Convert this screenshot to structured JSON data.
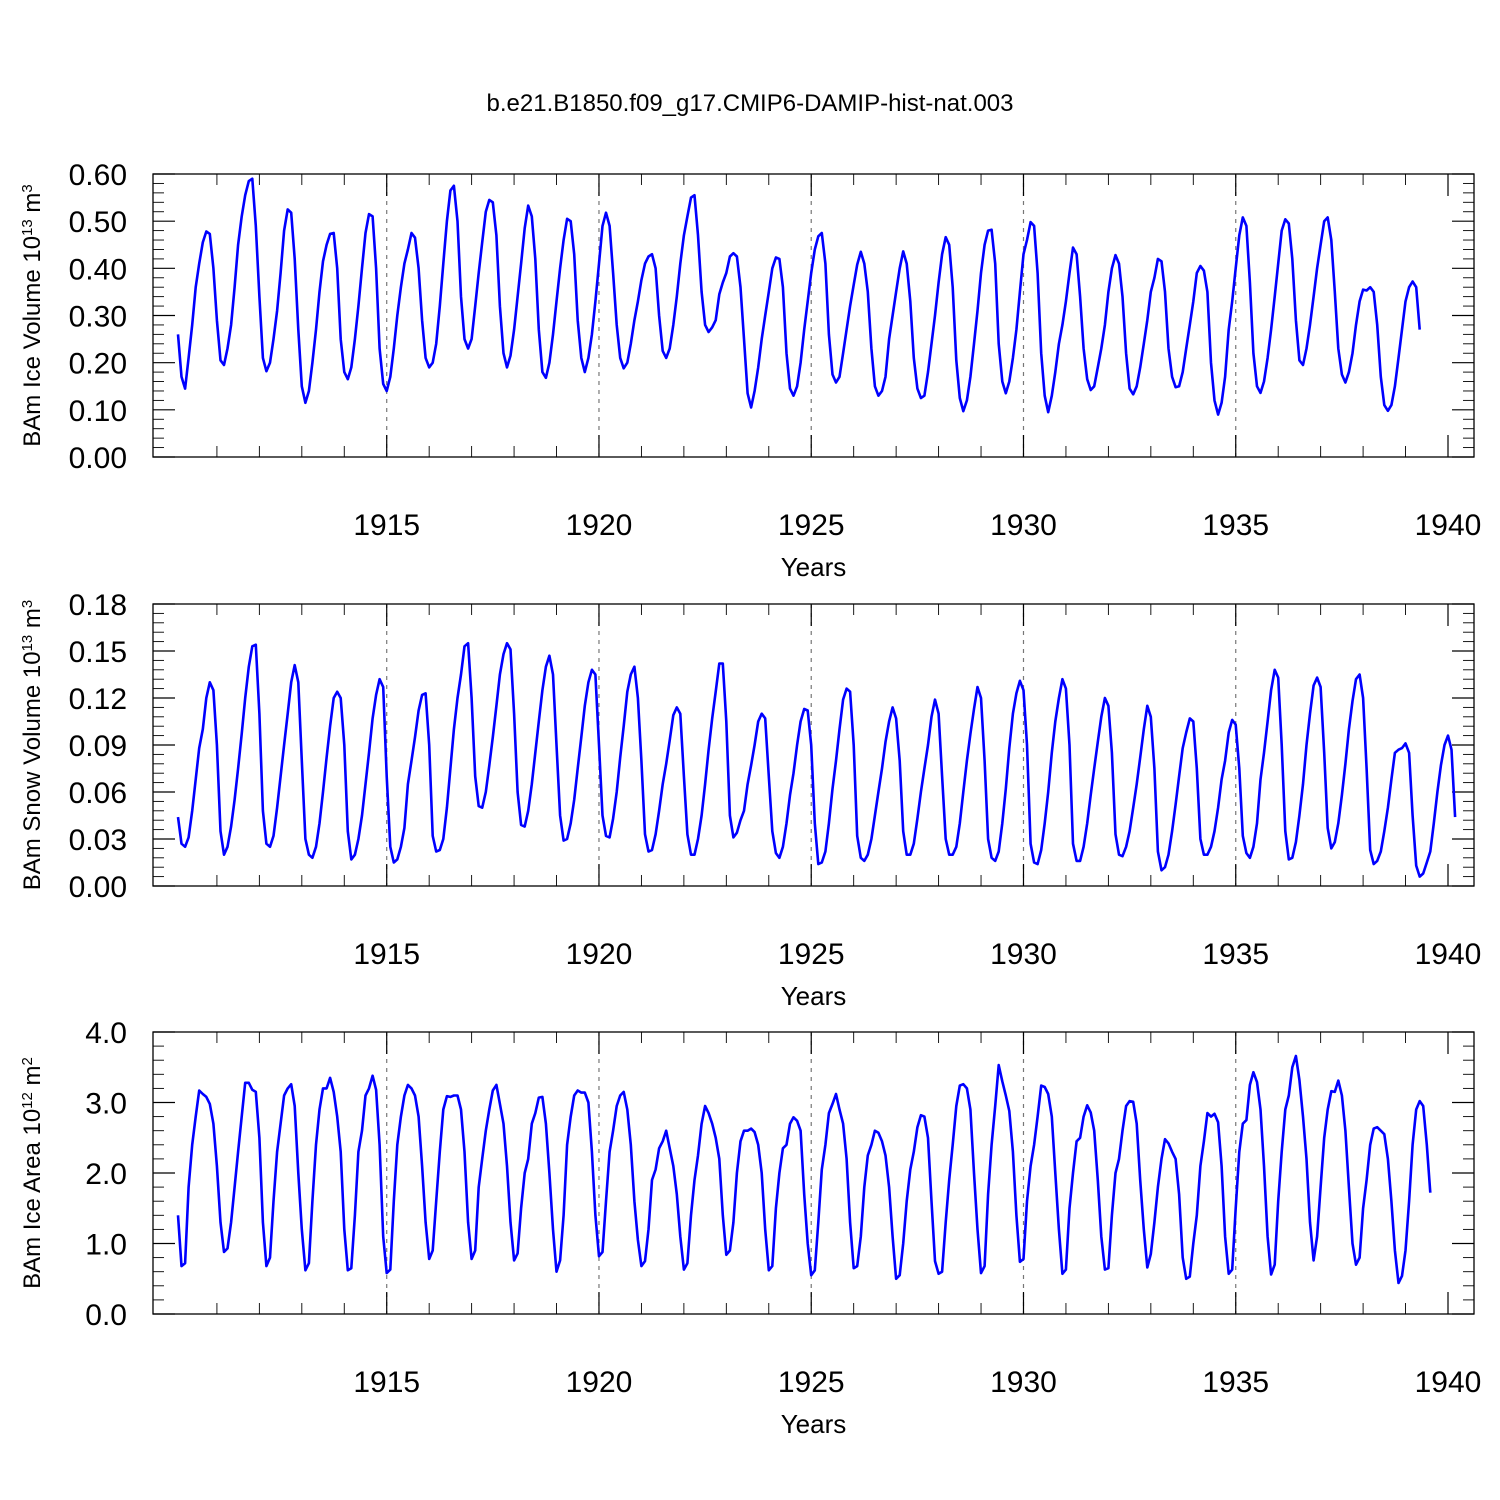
{
  "title": "b.e21.B1850.f09_g17.CMIP6-DAMIP-hist-nat.003",
  "chart_data": [
    {
      "type": "line",
      "name": "ice-volume",
      "ylabel": {
        "main": "BAm Ice Volume 10",
        "sup": "13",
        "mid": " m",
        "unit_sup": "3"
      },
      "xlabel": "Years",
      "xlim": [
        1910.0833,
        1940.0
      ],
      "ylim": [
        0,
        0.6
      ],
      "yticks": [
        "0.00",
        "0.10",
        "0.20",
        "0.30",
        "0.40",
        "0.50",
        "0.60"
      ],
      "yticks_values": [
        0,
        0.1,
        0.2,
        0.3,
        0.4,
        0.5,
        0.6
      ],
      "xticks": [
        "1915",
        "1920",
        "1925",
        "1930",
        "1935",
        "1940"
      ],
      "xticks_values": [
        1915,
        1920,
        1925,
        1930,
        1935,
        1940
      ],
      "grid_x": [
        1915,
        1920,
        1925,
        1930,
        1935
      ],
      "color": "#0000ff",
      "x_start": 1910.0833,
      "x_step": 0.0833333,
      "values": [
        0.26,
        0.17,
        0.145,
        0.21,
        0.28,
        0.36,
        0.41,
        0.455,
        0.478,
        0.473,
        0.4,
        0.29,
        0.205,
        0.195,
        0.23,
        0.28,
        0.36,
        0.45,
        0.51,
        0.555,
        0.585,
        0.59,
        0.49,
        0.34,
        0.21,
        0.182,
        0.2,
        0.25,
        0.31,
        0.39,
        0.48,
        0.525,
        0.518,
        0.42,
        0.27,
        0.15,
        0.115,
        0.14,
        0.2,
        0.27,
        0.35,
        0.415,
        0.45,
        0.473,
        0.475,
        0.4,
        0.25,
        0.18,
        0.165,
        0.19,
        0.25,
        0.32,
        0.4,
        0.475,
        0.515,
        0.51,
        0.4,
        0.23,
        0.155,
        0.14,
        0.17,
        0.23,
        0.3,
        0.36,
        0.41,
        0.44,
        0.475,
        0.465,
        0.4,
        0.29,
        0.21,
        0.19,
        0.2,
        0.24,
        0.32,
        0.41,
        0.5,
        0.565,
        0.575,
        0.5,
        0.34,
        0.25,
        0.23,
        0.25,
        0.32,
        0.39,
        0.455,
        0.52,
        0.545,
        0.54,
        0.47,
        0.32,
        0.22,
        0.19,
        0.215,
        0.27,
        0.34,
        0.41,
        0.485,
        0.533,
        0.51,
        0.42,
        0.27,
        0.18,
        0.168,
        0.2,
        0.26,
        0.33,
        0.4,
        0.46,
        0.505,
        0.5,
        0.43,
        0.29,
        0.21,
        0.18,
        0.21,
        0.26,
        0.33,
        0.41,
        0.49,
        0.518,
        0.49,
        0.39,
        0.28,
        0.21,
        0.188,
        0.2,
        0.24,
        0.29,
        0.33,
        0.375,
        0.41,
        0.425,
        0.43,
        0.4,
        0.3,
        0.225,
        0.21,
        0.23,
        0.28,
        0.34,
        0.41,
        0.47,
        0.51,
        0.55,
        0.555,
        0.47,
        0.35,
        0.28,
        0.265,
        0.275,
        0.29,
        0.345,
        0.37,
        0.39,
        0.425,
        0.432,
        0.425,
        0.36,
        0.25,
        0.135,
        0.105,
        0.14,
        0.19,
        0.25,
        0.3,
        0.35,
        0.4,
        0.423,
        0.42,
        0.36,
        0.22,
        0.145,
        0.13,
        0.15,
        0.2,
        0.27,
        0.33,
        0.39,
        0.44,
        0.468,
        0.475,
        0.41,
        0.26,
        0.175,
        0.158,
        0.17,
        0.22,
        0.27,
        0.32,
        0.365,
        0.408,
        0.435,
        0.41,
        0.35,
        0.23,
        0.15,
        0.13,
        0.14,
        0.17,
        0.25,
        0.3,
        0.35,
        0.4,
        0.436,
        0.41,
        0.33,
        0.21,
        0.145,
        0.125,
        0.13,
        0.18,
        0.24,
        0.3,
        0.37,
        0.43,
        0.466,
        0.45,
        0.36,
        0.205,
        0.125,
        0.097,
        0.12,
        0.17,
        0.24,
        0.31,
        0.39,
        0.45,
        0.48,
        0.482,
        0.41,
        0.24,
        0.16,
        0.135,
        0.16,
        0.21,
        0.27,
        0.35,
        0.43,
        0.46,
        0.498,
        0.49,
        0.39,
        0.22,
        0.13,
        0.095,
        0.13,
        0.18,
        0.24,
        0.28,
        0.33,
        0.39,
        0.444,
        0.43,
        0.34,
        0.23,
        0.165,
        0.142,
        0.15,
        0.19,
        0.23,
        0.28,
        0.35,
        0.4,
        0.428,
        0.41,
        0.34,
        0.22,
        0.145,
        0.133,
        0.15,
        0.19,
        0.24,
        0.29,
        0.35,
        0.38,
        0.42,
        0.415,
        0.35,
        0.23,
        0.17,
        0.148,
        0.15,
        0.18,
        0.23,
        0.28,
        0.33,
        0.39,
        0.405,
        0.395,
        0.35,
        0.2,
        0.12,
        0.09,
        0.115,
        0.17,
        0.27,
        0.33,
        0.4,
        0.47,
        0.508,
        0.49,
        0.37,
        0.22,
        0.15,
        0.136,
        0.16,
        0.21,
        0.27,
        0.34,
        0.41,
        0.48,
        0.504,
        0.495,
        0.42,
        0.29,
        0.205,
        0.195,
        0.23,
        0.28,
        0.34,
        0.4,
        0.45,
        0.5,
        0.508,
        0.46,
        0.35,
        0.23,
        0.175,
        0.158,
        0.18,
        0.22,
        0.28,
        0.33,
        0.355,
        0.353,
        0.36,
        0.35,
        0.28,
        0.17,
        0.11,
        0.098,
        0.11,
        0.15,
        0.21,
        0.27,
        0.33,
        0.36,
        0.372,
        0.36,
        0.27
      ]
    },
    {
      "type": "line",
      "name": "snow-volume",
      "ylabel": {
        "main": "BAm Snow Volume 10",
        "sup": "13",
        "mid": " m",
        "unit_sup": "3"
      },
      "xlabel": "Years",
      "xlim": [
        1910.0833,
        1940.0
      ],
      "ylim": [
        0,
        0.18
      ],
      "yticks": [
        "0.00",
        "0.03",
        "0.06",
        "0.09",
        "0.12",
        "0.15",
        "0.18"
      ],
      "yticks_values": [
        0,
        0.03,
        0.06,
        0.09,
        0.12,
        0.15,
        0.18
      ],
      "xticks": [
        "1915",
        "1920",
        "1925",
        "1930",
        "1935",
        "1940"
      ],
      "xticks_values": [
        1915,
        1920,
        1925,
        1930,
        1935,
        1940
      ],
      "grid_x": [
        1915,
        1920,
        1925,
        1930,
        1935
      ],
      "color": "#0000ff",
      "x_start": 1910.0833,
      "x_step": 0.0833333,
      "values": [
        0.044,
        0.027,
        0.025,
        0.031,
        0.048,
        0.068,
        0.088,
        0.1,
        0.12,
        0.13,
        0.125,
        0.09,
        0.035,
        0.02,
        0.025,
        0.038,
        0.055,
        0.075,
        0.097,
        0.12,
        0.14,
        0.153,
        0.154,
        0.11,
        0.048,
        0.027,
        0.025,
        0.032,
        0.05,
        0.07,
        0.09,
        0.11,
        0.13,
        0.141,
        0.13,
        0.08,
        0.03,
        0.02,
        0.018,
        0.025,
        0.04,
        0.06,
        0.082,
        0.102,
        0.12,
        0.124,
        0.12,
        0.09,
        0.035,
        0.017,
        0.02,
        0.03,
        0.045,
        0.065,
        0.085,
        0.107,
        0.122,
        0.132,
        0.127,
        0.07,
        0.025,
        0.015,
        0.017,
        0.025,
        0.037,
        0.065,
        0.08,
        0.095,
        0.112,
        0.122,
        0.123,
        0.09,
        0.032,
        0.022,
        0.023,
        0.03,
        0.05,
        0.075,
        0.1,
        0.12,
        0.135,
        0.153,
        0.155,
        0.12,
        0.07,
        0.051,
        0.05,
        0.06,
        0.077,
        0.095,
        0.115,
        0.135,
        0.148,
        0.155,
        0.151,
        0.11,
        0.06,
        0.039,
        0.038,
        0.048,
        0.065,
        0.085,
        0.105,
        0.125,
        0.14,
        0.147,
        0.135,
        0.09,
        0.045,
        0.029,
        0.03,
        0.04,
        0.055,
        0.075,
        0.095,
        0.115,
        0.13,
        0.138,
        0.135,
        0.09,
        0.045,
        0.032,
        0.031,
        0.043,
        0.06,
        0.082,
        0.102,
        0.124,
        0.135,
        0.14,
        0.12,
        0.08,
        0.033,
        0.022,
        0.023,
        0.033,
        0.048,
        0.065,
        0.078,
        0.093,
        0.109,
        0.114,
        0.11,
        0.07,
        0.033,
        0.02,
        0.02,
        0.03,
        0.045,
        0.065,
        0.087,
        0.107,
        0.124,
        0.142,
        0.142,
        0.105,
        0.045,
        0.031,
        0.034,
        0.042,
        0.048,
        0.065,
        0.077,
        0.09,
        0.105,
        0.11,
        0.107,
        0.07,
        0.035,
        0.021,
        0.018,
        0.025,
        0.04,
        0.058,
        0.072,
        0.09,
        0.105,
        0.113,
        0.112,
        0.09,
        0.04,
        0.014,
        0.015,
        0.022,
        0.04,
        0.062,
        0.08,
        0.1,
        0.119,
        0.126,
        0.124,
        0.09,
        0.032,
        0.018,
        0.016,
        0.02,
        0.03,
        0.045,
        0.06,
        0.075,
        0.092,
        0.105,
        0.114,
        0.107,
        0.08,
        0.035,
        0.02,
        0.02,
        0.027,
        0.043,
        0.06,
        0.075,
        0.09,
        0.108,
        0.119,
        0.11,
        0.07,
        0.03,
        0.02,
        0.02,
        0.025,
        0.04,
        0.06,
        0.08,
        0.097,
        0.113,
        0.127,
        0.12,
        0.08,
        0.03,
        0.018,
        0.016,
        0.022,
        0.04,
        0.062,
        0.088,
        0.11,
        0.123,
        0.131,
        0.125,
        0.09,
        0.027,
        0.015,
        0.014,
        0.023,
        0.04,
        0.06,
        0.085,
        0.105,
        0.12,
        0.132,
        0.126,
        0.09,
        0.027,
        0.016,
        0.016,
        0.025,
        0.04,
        0.058,
        0.075,
        0.092,
        0.108,
        0.12,
        0.115,
        0.085,
        0.033,
        0.02,
        0.019,
        0.025,
        0.035,
        0.05,
        0.065,
        0.082,
        0.1,
        0.115,
        0.108,
        0.075,
        0.022,
        0.01,
        0.012,
        0.02,
        0.035,
        0.052,
        0.07,
        0.088,
        0.098,
        0.107,
        0.105,
        0.075,
        0.03,
        0.02,
        0.02,
        0.025,
        0.035,
        0.05,
        0.068,
        0.08,
        0.098,
        0.106,
        0.103,
        0.075,
        0.032,
        0.021,
        0.018,
        0.025,
        0.04,
        0.068,
        0.085,
        0.105,
        0.125,
        0.138,
        0.133,
        0.09,
        0.035,
        0.017,
        0.018,
        0.028,
        0.045,
        0.065,
        0.09,
        0.11,
        0.128,
        0.133,
        0.127,
        0.085,
        0.037,
        0.024,
        0.028,
        0.04,
        0.058,
        0.078,
        0.1,
        0.118,
        0.132,
        0.135,
        0.12,
        0.075,
        0.023,
        0.014,
        0.016,
        0.022,
        0.035,
        0.05,
        0.068,
        0.085,
        0.087,
        0.088,
        0.091,
        0.085,
        0.045,
        0.013,
        0.006,
        0.008,
        0.015,
        0.022,
        0.04,
        0.06,
        0.077,
        0.09,
        0.096,
        0.087,
        0.044
      ]
    },
    {
      "type": "line",
      "name": "ice-area",
      "ylabel": {
        "main": "BAm Ice Area 10",
        "sup": "12",
        "mid": " m",
        "unit_sup": "2"
      },
      "xlabel": "Years",
      "xlim": [
        1910.0833,
        1940.0
      ],
      "ylim": [
        0,
        4
      ],
      "yticks": [
        "0.0",
        "1.0",
        "2.0",
        "3.0",
        "4.0"
      ],
      "yticks_values": [
        0,
        1,
        2,
        3,
        4
      ],
      "xticks": [
        "1915",
        "1920",
        "1925",
        "1930",
        "1935",
        "1940"
      ],
      "xticks_values": [
        1915,
        1920,
        1925,
        1930,
        1935,
        1940
      ],
      "grid_x": [
        1915,
        1920,
        1925,
        1930,
        1935
      ],
      "color": "#0000ff",
      "x_start": 1910.0833,
      "x_step": 0.0833333,
      "values": [
        1.4,
        0.68,
        0.72,
        1.8,
        2.4,
        2.8,
        3.17,
        3.12,
        3.08,
        2.98,
        2.7,
        2.1,
        1.3,
        0.88,
        0.93,
        1.3,
        1.8,
        2.3,
        2.8,
        3.28,
        3.28,
        3.18,
        3.15,
        2.5,
        1.3,
        0.68,
        0.8,
        1.6,
        2.3,
        2.7,
        3.1,
        3.2,
        3.26,
        2.95,
        2.0,
        1.2,
        0.62,
        0.72,
        1.6,
        2.4,
        2.9,
        3.2,
        3.2,
        3.35,
        3.15,
        2.8,
        2.3,
        1.2,
        0.62,
        0.65,
        1.4,
        2.3,
        2.6,
        3.1,
        3.2,
        3.38,
        3.18,
        2.4,
        1.1,
        0.58,
        0.63,
        1.6,
        2.4,
        2.8,
        3.1,
        3.25,
        3.2,
        3.1,
        2.8,
        2.1,
        1.3,
        0.78,
        0.9,
        1.6,
        2.3,
        2.9,
        3.09,
        3.08,
        3.1,
        3.1,
        2.9,
        2.3,
        1.3,
        0.78,
        0.9,
        1.8,
        2.2,
        2.6,
        2.9,
        3.17,
        3.25,
        2.98,
        2.7,
        2.1,
        1.3,
        0.76,
        0.86,
        1.5,
        2.0,
        2.2,
        2.7,
        2.85,
        3.07,
        3.08,
        2.7,
        2.0,
        1.2,
        0.6,
        0.76,
        1.4,
        2.4,
        2.8,
        3.1,
        3.17,
        3.14,
        3.14,
        3.0,
        2.3,
        1.4,
        0.82,
        0.88,
        1.6,
        2.3,
        2.6,
        2.95,
        3.1,
        3.15,
        2.9,
        2.4,
        1.6,
        1.05,
        0.68,
        0.75,
        1.2,
        1.9,
        2.05,
        2.35,
        2.45,
        2.6,
        2.35,
        2.1,
        1.7,
        1.1,
        0.63,
        0.72,
        1.4,
        1.9,
        2.25,
        2.7,
        2.95,
        2.85,
        2.7,
        2.5,
        2.2,
        1.4,
        0.84,
        0.9,
        1.3,
        2.0,
        2.45,
        2.6,
        2.6,
        2.63,
        2.58,
        2.4,
        2.0,
        1.2,
        0.62,
        0.68,
        1.5,
        2.0,
        2.35,
        2.4,
        2.7,
        2.79,
        2.74,
        2.6,
        1.7,
        1.0,
        0.55,
        0.62,
        1.3,
        2.05,
        2.4,
        2.85,
        2.98,
        3.12,
        2.9,
        2.7,
        2.2,
        1.3,
        0.65,
        0.68,
        1.1,
        1.8,
        2.25,
        2.4,
        2.6,
        2.57,
        2.45,
        2.25,
        1.8,
        1.1,
        0.5,
        0.55,
        1.0,
        1.6,
        2.05,
        2.3,
        2.65,
        2.82,
        2.8,
        2.5,
        1.6,
        0.75,
        0.57,
        0.6,
        1.3,
        1.9,
        2.4,
        2.95,
        3.24,
        3.26,
        3.2,
        2.9,
        2.0,
        1.2,
        0.58,
        0.68,
        1.7,
        2.4,
        2.95,
        3.53,
        3.3,
        3.1,
        2.88,
        2.3,
        1.4,
        0.74,
        0.78,
        1.6,
        2.1,
        2.4,
        2.8,
        3.24,
        3.22,
        3.12,
        2.8,
        2.0,
        1.2,
        0.57,
        0.63,
        1.5,
        2.0,
        2.45,
        2.5,
        2.8,
        2.96,
        2.86,
        2.6,
        1.9,
        1.1,
        0.63,
        0.65,
        1.4,
        2.0,
        2.2,
        2.6,
        2.95,
        3.02,
        3.01,
        2.7,
        1.9,
        1.2,
        0.66,
        0.85,
        1.3,
        1.8,
        2.2,
        2.48,
        2.42,
        2.3,
        2.2,
        1.7,
        0.8,
        0.5,
        0.53,
        1.0,
        1.4,
        2.1,
        2.45,
        2.85,
        2.8,
        2.84,
        2.72,
        2.1,
        1.1,
        0.57,
        0.63,
        1.5,
        2.3,
        2.7,
        2.75,
        3.25,
        3.43,
        3.29,
        2.9,
        2.1,
        1.1,
        0.56,
        0.7,
        1.6,
        2.3,
        2.9,
        3.1,
        3.5,
        3.66,
        3.32,
        2.8,
        2.2,
        1.3,
        0.76,
        1.1,
        1.8,
        2.5,
        2.9,
        3.16,
        3.15,
        3.31,
        3.1,
        2.6,
        1.8,
        1.0,
        0.7,
        0.8,
        1.5,
        1.9,
        2.4,
        2.63,
        2.65,
        2.6,
        2.55,
        2.2,
        1.6,
        0.9,
        0.44,
        0.54,
        0.9,
        1.6,
        2.4,
        2.9,
        3.02,
        2.95,
        2.4,
        1.72
      ]
    }
  ]
}
